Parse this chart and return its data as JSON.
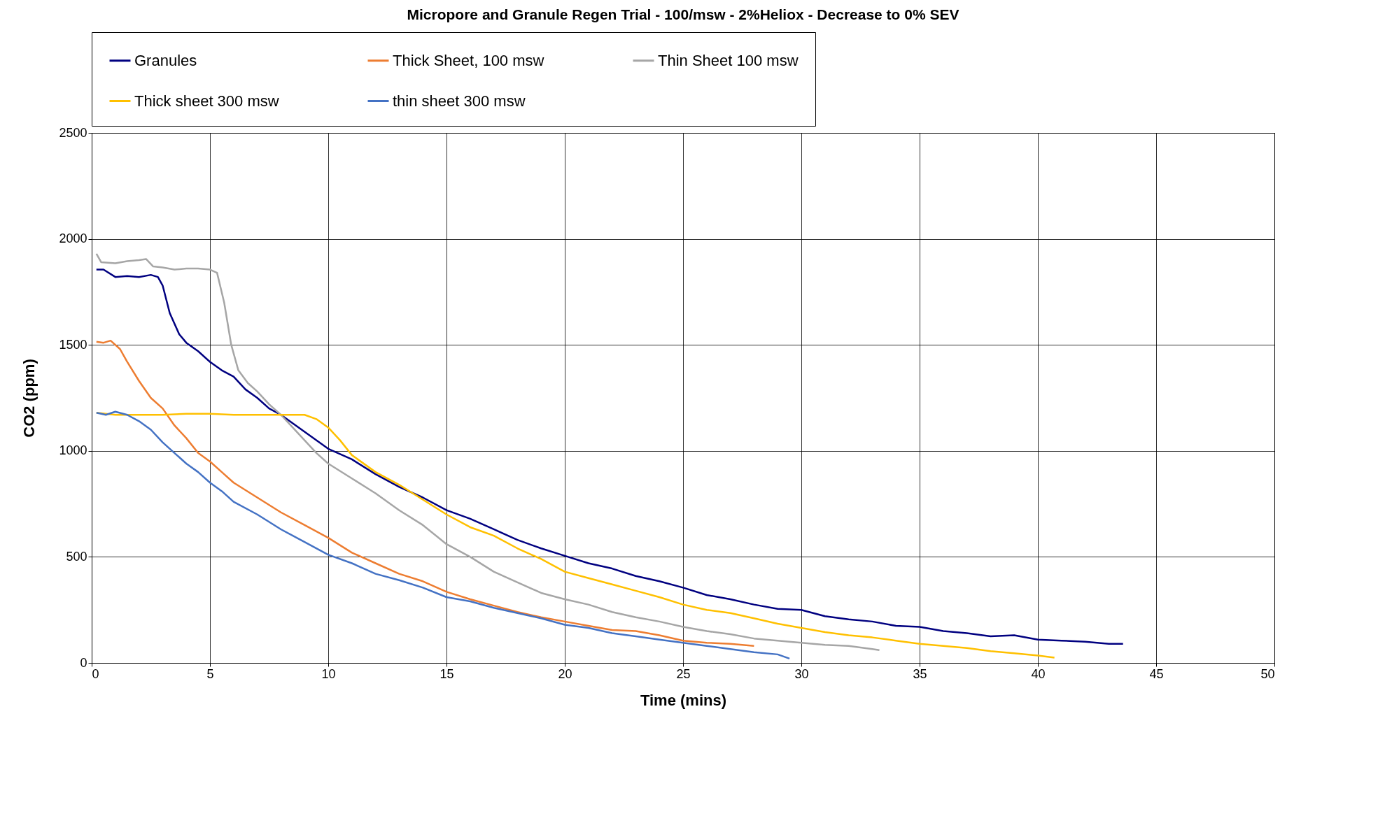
{
  "chart_data": {
    "type": "line",
    "title": "Micropore and Granule  Regen Trial - 100/msw - 2%Heliox - Decrease to 0% SEV",
    "xlabel": "Time (mins)",
    "ylabel": "CO2 (ppm)",
    "xlim": [
      0,
      50
    ],
    "xticks": [
      0,
      5,
      10,
      15,
      20,
      25,
      30,
      35,
      40,
      45,
      50
    ],
    "ylim": [
      0,
      2500
    ],
    "yticks": [
      0,
      500,
      1000,
      1500,
      2000,
      2500
    ],
    "grid": true,
    "legend": "top",
    "marker": "none",
    "line_style": "solid",
    "series": [
      {
        "name": "Granules",
        "color": "#000080",
        "x": [
          0.2,
          0.5,
          1,
          1.5,
          2,
          2.5,
          2.8,
          3,
          3.3,
          3.7,
          4,
          4.5,
          5,
          5.5,
          6,
          6.5,
          7,
          7.5,
          8,
          9,
          10,
          11,
          12,
          13,
          14,
          15,
          16,
          17,
          18,
          19,
          20,
          21,
          22,
          23,
          24,
          25,
          26,
          27,
          28,
          29,
          30,
          31,
          32,
          33,
          34,
          35,
          36,
          37,
          38,
          39,
          40,
          41,
          42,
          43,
          43.6
        ],
        "values": [
          1855,
          1855,
          1820,
          1825,
          1820,
          1830,
          1820,
          1780,
          1650,
          1550,
          1510,
          1470,
          1420,
          1380,
          1350,
          1290,
          1250,
          1200,
          1170,
          1090,
          1010,
          960,
          890,
          830,
          780,
          720,
          680,
          630,
          580,
          540,
          505,
          470,
          445,
          410,
          385,
          355,
          320,
          300,
          275,
          255,
          250,
          220,
          205,
          195,
          175,
          170,
          150,
          140,
          125,
          130,
          110,
          105,
          100,
          90,
          90
        ]
      },
      {
        "name": "Thick Sheet, 100 msw",
        "color": "#ed7d31",
        "x": [
          0.2,
          0.5,
          0.8,
          1.2,
          1.5,
          2,
          2.5,
          3,
          3.5,
          4,
          4.5,
          5,
          5.5,
          6,
          7,
          8,
          9,
          10,
          11,
          12,
          13,
          14,
          15,
          16,
          17,
          18,
          19,
          20,
          21,
          22,
          23,
          24,
          25,
          26,
          27,
          28
        ],
        "values": [
          1515,
          1510,
          1520,
          1480,
          1420,
          1330,
          1250,
          1200,
          1120,
          1060,
          990,
          950,
          900,
          850,
          780,
          710,
          650,
          590,
          520,
          470,
          420,
          385,
          335,
          300,
          270,
          240,
          215,
          195,
          175,
          155,
          150,
          130,
          105,
          95,
          90,
          80
        ]
      },
      {
        "name": "Thin Sheet 100 msw",
        "color": "#a6a6a6",
        "x": [
          0.2,
          0.4,
          1,
          1.5,
          2,
          2.3,
          2.6,
          3,
          3.5,
          4,
          4.5,
          5,
          5.3,
          5.6,
          5.9,
          6.2,
          6.6,
          7,
          7.5,
          8,
          8.5,
          9,
          9.5,
          10,
          11,
          12,
          13,
          14,
          15,
          16,
          17,
          18,
          19,
          20,
          21,
          22,
          23,
          24,
          25,
          26,
          27,
          28,
          29,
          30,
          31,
          32,
          33,
          33.3
        ],
        "values": [
          1930,
          1890,
          1885,
          1895,
          1900,
          1905,
          1870,
          1865,
          1855,
          1860,
          1860,
          1855,
          1840,
          1700,
          1500,
          1380,
          1320,
          1280,
          1220,
          1170,
          1110,
          1050,
          990,
          940,
          870,
          800,
          720,
          650,
          560,
          500,
          430,
          380,
          330,
          300,
          275,
          240,
          215,
          195,
          170,
          150,
          135,
          115,
          105,
          95,
          85,
          80,
          65,
          60
        ]
      },
      {
        "name": "Thick sheet 300 msw",
        "color": "#ffc000",
        "x": [
          0.2,
          1,
          2,
          3,
          4,
          5,
          6,
          7,
          8,
          9,
          9.5,
          10,
          10.5,
          11,
          12,
          13,
          14,
          15,
          16,
          17,
          18,
          19,
          20,
          21,
          22,
          23,
          24,
          25,
          26,
          27,
          28,
          29,
          30,
          31,
          32,
          33,
          34,
          35,
          36,
          37,
          38,
          39,
          40,
          40.7
        ],
        "values": [
          1180,
          1170,
          1170,
          1170,
          1175,
          1175,
          1170,
          1170,
          1170,
          1170,
          1150,
          1110,
          1050,
          980,
          900,
          840,
          770,
          700,
          640,
          600,
          540,
          490,
          430,
          400,
          370,
          340,
          310,
          275,
          250,
          235,
          210,
          185,
          165,
          145,
          130,
          120,
          105,
          90,
          80,
          70,
          55,
          45,
          35,
          25
        ]
      },
      {
        "name": "thin sheet 300 msw",
        "color": "#4472c4",
        "x": [
          0.2,
          0.6,
          1,
          1.5,
          2,
          2.5,
          3,
          3.5,
          4,
          4.5,
          5,
          5.5,
          6,
          7,
          8,
          9,
          10,
          11,
          12,
          13,
          14,
          15,
          16,
          17,
          18,
          19,
          20,
          21,
          22,
          23,
          24,
          25,
          26,
          27,
          28,
          29,
          29.5
        ],
        "values": [
          1180,
          1170,
          1185,
          1170,
          1140,
          1100,
          1040,
          990,
          940,
          900,
          850,
          810,
          760,
          700,
          630,
          570,
          510,
          470,
          420,
          390,
          355,
          310,
          290,
          260,
          235,
          210,
          180,
          165,
          140,
          125,
          110,
          95,
          80,
          65,
          50,
          40,
          20
        ]
      }
    ]
  }
}
